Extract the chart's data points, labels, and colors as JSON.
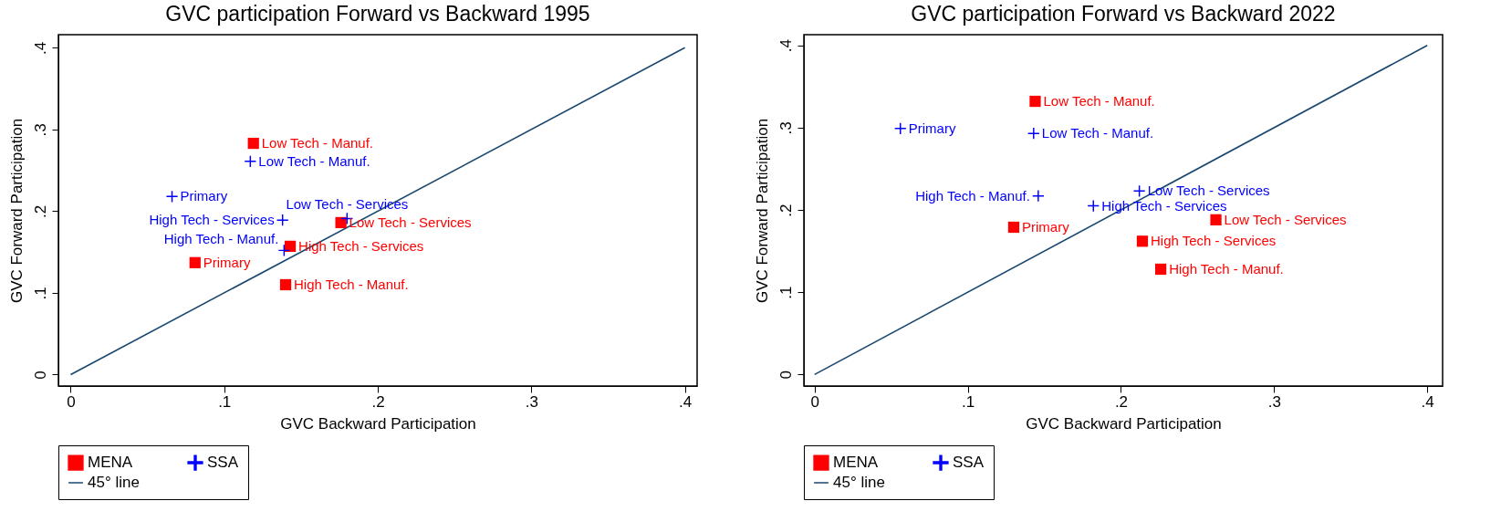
{
  "chart_data": [
    {
      "type": "scatter",
      "title": "GVC participation Forward vs Backward  1995",
      "xlabel": "GVC Backward Participation",
      "ylabel": "GVC Forward Participation",
      "xlim": [
        -0.008,
        0.408
      ],
      "ylim": [
        -0.014,
        0.416
      ],
      "xticks": [
        0,
        {
          "value": 0.1,
          "label": ".1"
        },
        {
          "value": 0.2,
          "label": ".2"
        },
        {
          "value": 0.3,
          "label": ".3"
        },
        {
          "value": 0.4,
          "label": ".4"
        }
      ],
      "yticks": [
        0,
        {
          "value": 0.1,
          "label": ".1"
        },
        {
          "value": 0.2,
          "label": ".2"
        },
        {
          "value": 0.3,
          "label": ".3"
        },
        {
          "value": 0.4,
          "label": ".4"
        }
      ],
      "legend": "bottom",
      "series": [
        {
          "name": "MENA",
          "color": "#ff0000",
          "marker": "square",
          "x": [
            0.119,
            0.081,
            0.143,
            0.176,
            0.14
          ],
          "values": [
            0.283,
            0.137,
            0.157,
            0.186,
            0.11
          ],
          "value_labels": [
            "Low Tech - Manuf.",
            "Primary",
            "High Tech - Services",
            "Low Tech - Services",
            "High Tech - Manuf."
          ]
        },
        {
          "name": "SSA",
          "color": "#0000ff",
          "marker": "cross",
          "x": [
            0.117,
            0.066,
            0.138,
            0.18,
            0.139
          ],
          "values": [
            0.261,
            0.218,
            0.189,
            0.191,
            0.152
          ],
          "value_labels": [
            "Low Tech - Manuf.",
            "Primary",
            "High Tech - Services",
            "Low Tech - Services",
            "High Tech - Manuf."
          ]
        },
        {
          "name": "45° line",
          "type": "line",
          "color": "#1a476f",
          "x": [
            0,
            0.4
          ],
          "values": [
            0,
            0.4
          ]
        }
      ]
    },
    {
      "type": "scatter",
      "title": "GVC participation Forward vs Backward  2022",
      "xlabel": "GVC Backward Participation",
      "ylabel": "GVC Forward Participation",
      "xlim": [
        -0.007,
        0.41
      ],
      "ylim": [
        -0.014,
        0.413
      ],
      "xticks": [
        0,
        {
          "value": 0.1,
          "label": ".1"
        },
        {
          "value": 0.2,
          "label": ".2"
        },
        {
          "value": 0.3,
          "label": ".3"
        },
        {
          "value": 0.4,
          "label": ".4"
        }
      ],
      "yticks": [
        0,
        {
          "value": 0.1,
          "label": ".1"
        },
        {
          "value": 0.2,
          "label": ".2"
        },
        {
          "value": 0.3,
          "label": ".3"
        },
        {
          "value": 0.4,
          "label": ".4"
        }
      ],
      "legend": "bottom",
      "series": [
        {
          "name": "MENA",
          "color": "#ff0000",
          "marker": "square",
          "x": [
            0.144,
            0.13,
            0.262,
            0.214,
            0.226
          ],
          "values": [
            0.332,
            0.179,
            0.188,
            0.162,
            0.128
          ],
          "value_labels": [
            "Low Tech - Manuf.",
            "Primary",
            "Low Tech - Services",
            "High Tech - Services",
            "High Tech - Manuf."
          ]
        },
        {
          "name": "SSA",
          "color": "#0000ff",
          "marker": "cross",
          "x": [
            0.056,
            0.143,
            0.146,
            0.212,
            0.182
          ],
          "values": [
            0.299,
            0.293,
            0.217,
            0.223,
            0.205
          ],
          "value_labels": [
            "Primary",
            "Low Tech - Manuf.",
            "High Tech - Manuf.",
            "Low Tech - Services",
            "High Tech - Services"
          ]
        },
        {
          "name": "45° line",
          "type": "line",
          "color": "#1a476f",
          "x": [
            0,
            0.4
          ],
          "values": [
            0,
            0.4
          ]
        }
      ]
    }
  ]
}
